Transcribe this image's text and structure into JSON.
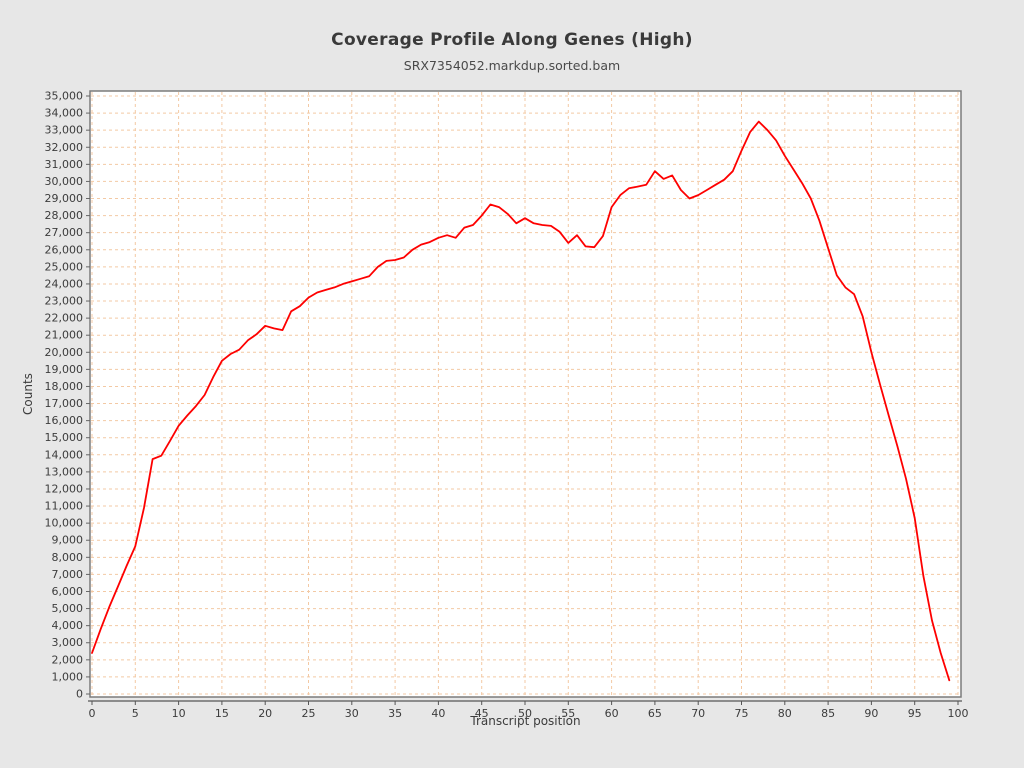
{
  "chart_data": {
    "type": "line",
    "title": "Coverage Profile Along Genes (High)",
    "subtitle": "SRX7354052.markdup.sorted.bam",
    "xlabel": "Transcript position",
    "ylabel": "Counts",
    "xlim": [
      0,
      100
    ],
    "ylim": [
      0,
      35000
    ],
    "x_tick_step": 5,
    "y_tick_step": 1000,
    "grid": "on",
    "grid_color": "#f3c9a4",
    "line_color": "#fe0000",
    "frame_color": "#7b7b7b",
    "plot_bg": "#ffffff",
    "page_bg": "#e7e7e7",
    "series": [
      {
        "name": "coverage",
        "x": [
          0,
          1,
          2,
          3,
          4,
          5,
          6,
          7,
          8,
          9,
          10,
          11,
          12,
          13,
          14,
          15,
          16,
          17,
          18,
          19,
          20,
          21,
          22,
          23,
          24,
          25,
          26,
          27,
          28,
          29,
          30,
          31,
          32,
          33,
          34,
          35,
          36,
          37,
          38,
          39,
          40,
          41,
          42,
          43,
          44,
          45,
          46,
          47,
          48,
          49,
          50,
          51,
          52,
          53,
          54,
          55,
          56,
          57,
          58,
          59,
          60,
          61,
          62,
          63,
          64,
          65,
          66,
          67,
          68,
          69,
          70,
          71,
          72,
          73,
          74,
          75,
          76,
          77,
          78,
          79,
          80,
          81,
          82,
          83,
          84,
          85,
          86,
          87,
          88,
          89,
          90,
          91,
          92,
          93,
          94,
          95,
          96,
          97,
          98,
          99
        ],
        "values": [
          2400,
          3800,
          5100,
          6300,
          7500,
          8650,
          10900,
          13750,
          13950,
          14800,
          15700,
          16300,
          16850,
          17500,
          18550,
          19500,
          19900,
          20150,
          20700,
          21050,
          21550,
          21400,
          21300,
          22400,
          22700,
          23200,
          23500,
          23650,
          23800,
          24000,
          24150,
          24300,
          24450,
          25000,
          25350,
          25400,
          25550,
          26000,
          26300,
          26450,
          26700,
          26850,
          26700,
          27300,
          27450,
          28000,
          28650,
          28500,
          28100,
          27550,
          27850,
          27550,
          27450,
          27400,
          27050,
          26400,
          26850,
          26200,
          26150,
          26800,
          28500,
          29200,
          29600,
          29700,
          29800,
          30600,
          30150,
          30350,
          29500,
          29000,
          29200,
          29500,
          29800,
          30100,
          30600,
          31800,
          32900,
          33500,
          33000,
          32400,
          31500,
          30700,
          29900,
          29000,
          27700,
          26100,
          24500,
          23800,
          23400,
          22100,
          20000,
          18100,
          16300,
          14500,
          12600,
          10300,
          6900,
          4300,
          2400,
          800
        ]
      }
    ]
  }
}
